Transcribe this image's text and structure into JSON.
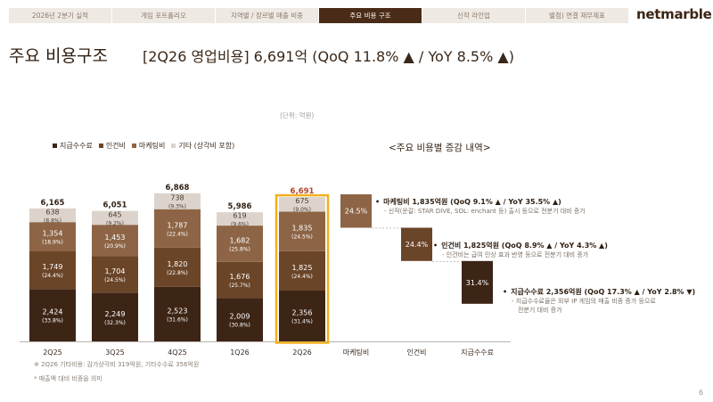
{
  "nav": {
    "tabs": [
      "2026년 2분기 실적",
      "게임 포트폴리오",
      "지역별 / 장르별 매출 비중",
      "주요 비용 구조",
      "신작 라인업",
      "별첨) 연결 재무제표"
    ],
    "active_index": 3
  },
  "logo": "netmarble",
  "page": {
    "title": "주요 비용구조",
    "headline": "[2Q26 영업비용] 6,691억 (QoQ 11.8% ▲ / YoY 8.5% ▲)",
    "unit": "(단위: 억원)",
    "breakdown_title": "<주요 비용별 증감 내역>",
    "footnote_1": "※ 2Q26 기타비용: 감가상각비 319억원, 기타수수료 356억원",
    "footnote_2": "* 매출액 대비 비중을 의미",
    "page_number": "6"
  },
  "legend": [
    {
      "label": "지급수수료",
      "color": "#3d2516"
    },
    {
      "label": "인건비",
      "color": "#6b4528"
    },
    {
      "label": "마케팅비",
      "color": "#8d6546"
    },
    {
      "label": "기타 (상각비 포함)",
      "color": "#dcd4cc"
    }
  ],
  "callouts": [
    {
      "title": "마케팅비 1,835억원 (QoQ 9.1% ▲ / YoY 35.5% ▲)",
      "lines": [
        "- 신작(운갈: STAR DIVE, SOL: enchant 등) 출시 등으로 전분기 대비 증가"
      ]
    },
    {
      "title": "인건비 1,825억원 (QoQ 8.9% ▲ / YoY 4.3% ▲)",
      "lines": [
        "- 인건비는 급여 인상 효과 반영 등으로 전분기 대비 증가"
      ]
    },
    {
      "title": "지급수수료 2,356억원 (QoQ 17.3% ▲ / YoY 2.8% ▼)",
      "lines": [
        "- 지급수수료율은 외부 IP 게임의 매출 비중 증가 등으로",
        "전분기 대비 증가"
      ]
    }
  ],
  "chart_data": [
    {
      "type": "bar",
      "stacked": true,
      "categories": [
        "2Q25",
        "3Q25",
        "4Q25",
        "1Q26",
        "2Q26"
      ],
      "totals": [
        "6,165",
        "6,051",
        "6,868",
        "5,986",
        "6,691"
      ],
      "highlight_index": 4,
      "series": [
        {
          "name": "지급수수료",
          "color": "#3d2516",
          "text_color": "#ffffff",
          "values": [
            2424,
            2249,
            2523,
            2009,
            2356
          ],
          "labels": [
            "2,424",
            "2,249",
            "2,523",
            "2,009",
            "2,356"
          ],
          "shares": [
            "(33.8%)",
            "(32.3%)",
            "(31.6%)",
            "(30.8%)",
            "(31.4%)"
          ]
        },
        {
          "name": "인건비",
          "color": "#6b4528",
          "text_color": "#ffffff",
          "values": [
            1749,
            1704,
            1820,
            1676,
            1825
          ],
          "labels": [
            "1,749",
            "1,704",
            "1,820",
            "1,676",
            "1,825"
          ],
          "shares": [
            "(24.4%)",
            "(24.5%)",
            "(22.8%)",
            "(25.7%)",
            "(24.4%)"
          ]
        },
        {
          "name": "마케팅비",
          "color": "#8d6546",
          "text_color": "#ffffff",
          "values": [
            1354,
            1453,
            1787,
            1682,
            1835
          ],
          "labels": [
            "1,354",
            "1,453",
            "1,787",
            "1,682",
            "1,835"
          ],
          "shares": [
            "(18.9%)",
            "(20.9%)",
            "(22.4%)",
            "(25.8%)",
            "(24.5%)"
          ]
        },
        {
          "name": "기타 (상각비 포함)",
          "color": "#dcd4cc",
          "text_color": "#4a3a2c",
          "values": [
            638,
            645,
            738,
            619,
            675
          ],
          "labels": [
            "638",
            "645",
            "738",
            "619",
            "675"
          ],
          "shares": [
            "(8.8%)",
            "(9.2%)",
            "(9.3%)",
            "(9.6%)",
            "(9.0%)"
          ]
        }
      ]
    },
    {
      "type": "bar",
      "subtype": "waterfall",
      "categories": [
        "마케팅비",
        "인건비",
        "지급수수료"
      ],
      "values": [
        24.5,
        24.4,
        31.4
      ],
      "labels": [
        "24.5%",
        "24.4%",
        "31.4%"
      ],
      "colors": [
        "#8d6546",
        "#6b4528",
        "#3d2516"
      ]
    }
  ]
}
